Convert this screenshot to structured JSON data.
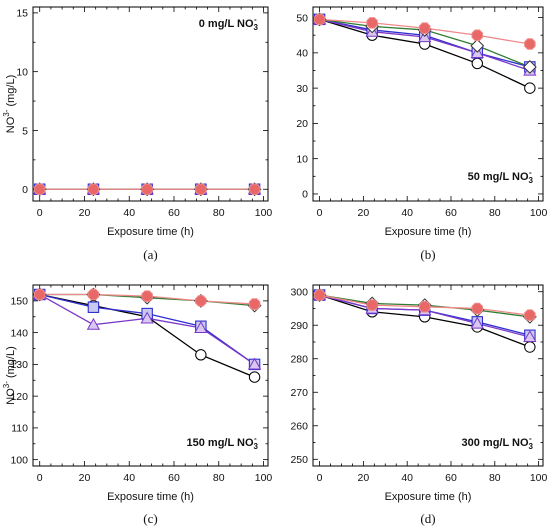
{
  "chart_data": [
    {
      "type": "line",
      "panel": "(a)",
      "annotation": "0 mg/L NO",
      "annotation_sub": "3",
      "annotation_sup": "-",
      "xlabel": "Exposure time (h)",
      "ylabel": "NO",
      "ylabel_sup": "3-",
      "ylabel_unit": " (mg/L)",
      "xlim": [
        -3,
        102
      ],
      "ylim": [
        -1,
        15.5
      ],
      "xticks": [
        0,
        20,
        40,
        60,
        80,
        100
      ],
      "yticks": [
        0,
        5,
        10,
        15
      ],
      "x": [
        0,
        24,
        48,
        72,
        96
      ],
      "series": [
        {
          "marker": "circle",
          "color": "#000000",
          "fill": "#ffffff",
          "values": [
            0,
            0,
            0,
            0,
            0
          ]
        },
        {
          "marker": "square",
          "color": "#2f2fd0",
          "fill": "#c8c8f0",
          "values": [
            0,
            0,
            0,
            0,
            0
          ]
        },
        {
          "marker": "triangle",
          "color": "#7b38c8",
          "fill": "#d8c8f0",
          "values": [
            0,
            0,
            0,
            0,
            0
          ]
        },
        {
          "marker": "diamond",
          "color": "#2e7d32",
          "fill": "#ffffff",
          "values": [
            0,
            0,
            0,
            0,
            0
          ]
        },
        {
          "marker": "hexagon",
          "color": "#f08a8a",
          "fill": "#e86868",
          "values": [
            0,
            0,
            0,
            0,
            0
          ]
        }
      ]
    },
    {
      "type": "line",
      "panel": "(b)",
      "annotation": "50 mg/L NO",
      "annotation_sub": "3",
      "annotation_sup": "-",
      "xlabel": "Exposure time (h)",
      "ylabel": "",
      "ylabel_sup": "",
      "ylabel_unit": "",
      "xlim": [
        -3,
        102
      ],
      "ylim": [
        -2,
        53
      ],
      "xticks": [
        0,
        20,
        40,
        60,
        80,
        100
      ],
      "yticks": [
        0,
        10,
        20,
        30,
        40,
        50
      ],
      "x": [
        0,
        24,
        48,
        72,
        96
      ],
      "series": [
        {
          "marker": "circle",
          "color": "#000000",
          "fill": "#ffffff",
          "values": [
            49.5,
            45,
            42.5,
            37,
            30
          ]
        },
        {
          "marker": "square",
          "color": "#2f2fd0",
          "fill": "#c8c8f0",
          "values": [
            49.5,
            46.5,
            45,
            40,
            36
          ]
        },
        {
          "marker": "triangle",
          "color": "#7b38c8",
          "fill": "#d8c8f0",
          "values": [
            49.5,
            46,
            44.5,
            40,
            35
          ]
        },
        {
          "marker": "diamond",
          "color": "#2e7d32",
          "fill": "#ffffff",
          "values": [
            49.5,
            47.5,
            46.5,
            42,
            36
          ]
        },
        {
          "marker": "hexagon",
          "color": "#f08a8a",
          "fill": "#e86868",
          "values": [
            49.5,
            48.5,
            47,
            45,
            42.5
          ]
        }
      ]
    },
    {
      "type": "line",
      "panel": "(c)",
      "annotation": "150 mg/L NO",
      "annotation_sub": "3",
      "annotation_sup": "-",
      "xlabel": "Exposure time (h)",
      "ylabel": "NO",
      "ylabel_sup": "3-",
      "ylabel_unit": " (mg/L)",
      "xlim": [
        -3,
        102
      ],
      "ylim": [
        98,
        155
      ],
      "xticks": [
        0,
        20,
        40,
        60,
        80,
        100
      ],
      "yticks": [
        100,
        110,
        120,
        130,
        140,
        150
      ],
      "x": [
        0,
        24,
        48,
        72,
        96
      ],
      "series": [
        {
          "marker": "circle",
          "color": "#000000",
          "fill": "#ffffff",
          "values": [
            152,
            148.5,
            145,
            133,
            126
          ]
        },
        {
          "marker": "square",
          "color": "#2f2fd0",
          "fill": "#c8c8f0",
          "values": [
            152,
            148,
            146,
            142,
            130
          ]
        },
        {
          "marker": "triangle",
          "color": "#7b38c8",
          "fill": "#d8c8f0",
          "values": [
            152,
            142.5,
            144.5,
            141.5,
            130
          ]
        },
        {
          "marker": "diamond",
          "color": "#2e7d32",
          "fill": "#ffffff",
          "values": [
            152,
            152,
            151,
            150,
            148.5
          ]
        },
        {
          "marker": "hexagon",
          "color": "#f08a8a",
          "fill": "#e86868",
          "values": [
            152,
            152,
            151.5,
            150,
            149
          ]
        }
      ]
    },
    {
      "type": "line",
      "panel": "(d)",
      "annotation": "300 mg/L NO",
      "annotation_sub": "3",
      "annotation_sup": "-",
      "xlabel": "Exposure time (h)",
      "ylabel": "",
      "ylabel_sup": "",
      "ylabel_unit": "",
      "xlim": [
        -3,
        102
      ],
      "ylim": [
        248,
        302
      ],
      "xticks": [
        0,
        20,
        40,
        60,
        80,
        100
      ],
      "yticks": [
        250,
        260,
        270,
        280,
        290,
        300
      ],
      "x": [
        0,
        24,
        48,
        72,
        96
      ],
      "series": [
        {
          "marker": "circle",
          "color": "#000000",
          "fill": "#ffffff",
          "values": [
            299,
            294,
            292.5,
            289.5,
            283.5
          ]
        },
        {
          "marker": "square",
          "color": "#2f2fd0",
          "fill": "#c8c8f0",
          "values": [
            299,
            295,
            294.5,
            291,
            287
          ]
        },
        {
          "marker": "triangle",
          "color": "#7b38c8",
          "fill": "#d8c8f0",
          "values": [
            299,
            295,
            294.5,
            290.5,
            286.5
          ]
        },
        {
          "marker": "diamond",
          "color": "#2e7d32",
          "fill": "#ffffff",
          "values": [
            299,
            296.5,
            296,
            294.5,
            292.5
          ]
        },
        {
          "marker": "hexagon",
          "color": "#f08a8a",
          "fill": "#e86868",
          "values": [
            299,
            296,
            295.5,
            295,
            293
          ]
        }
      ]
    }
  ]
}
